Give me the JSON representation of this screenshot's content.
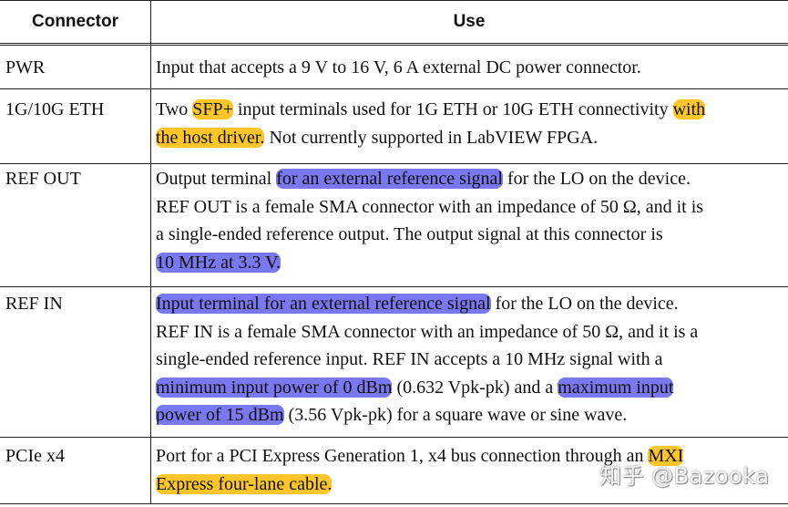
{
  "header": {
    "connector": "Connector",
    "use": "Use"
  },
  "colors": {
    "highlight_yellow": "#fcc62a",
    "highlight_blue": "#7a78f0"
  },
  "rows": [
    {
      "connector": "PWR",
      "lines": [
        [
          {
            "t": "Input that accepts a 9 V to 16 V, 6 A external DC power connector."
          }
        ]
      ]
    },
    {
      "connector": "1G/10G ETH",
      "lines": [
        [
          {
            "t": "Two "
          },
          {
            "t": "SFP+",
            "h": "y"
          },
          {
            "t": " input terminals used for 1G ETH or 10G ETH connectivity "
          },
          {
            "t": "with",
            "h": "y"
          }
        ],
        [
          {
            "t": "the host driver.",
            "h": "y"
          },
          {
            "t": " Not currently supported in LabVIEW FPGA."
          }
        ]
      ]
    },
    {
      "connector": "REF OUT",
      "lines": [
        [
          {
            "t": "Output terminal "
          },
          {
            "t": "for an external reference signal",
            "h": "b"
          },
          {
            "t": " for the LO on the device."
          }
        ],
        [
          {
            "t": "REF OUT is a female SMA connector with an impedance of 50 Ω, and it is"
          }
        ],
        [
          {
            "t": "a single-ended reference output. The output signal at this connector is"
          }
        ],
        [
          {
            "t": "10 MHz at 3.3 V.",
            "h": "b"
          }
        ]
      ]
    },
    {
      "connector": "REF IN",
      "lines": [
        [
          {
            "t": "Input terminal for an external reference signal",
            "h": "b"
          },
          {
            "t": " for the LO on the device."
          }
        ],
        [
          {
            "t": "REF IN is a female SMA connector with an impedance of 50 Ω, and it is a"
          }
        ],
        [
          {
            "t": "single-ended reference input. REF IN accepts a 10 MHz signal with a"
          }
        ],
        [
          {
            "t": "minimum input power of 0 dBm",
            "h": "b"
          },
          {
            "t": " (0.632 Vpk-pk) and a "
          },
          {
            "t": "maximum input",
            "h": "b"
          }
        ],
        [
          {
            "t": "power of 15 dBm",
            "h": "b"
          },
          {
            "t": " (3.56 Vpk-pk) for a square wave or sine wave."
          }
        ]
      ]
    },
    {
      "connector": "PCIe x4",
      "lines": [
        [
          {
            "t": "Port for a PCI Express Generation 1, x4 bus connection through an "
          },
          {
            "t": "MXI",
            "h": "y"
          }
        ],
        [
          {
            "t": "Express four-lane cable.",
            "h": "y"
          }
        ]
      ]
    }
  ],
  "watermark": "知乎 @Bazooka"
}
